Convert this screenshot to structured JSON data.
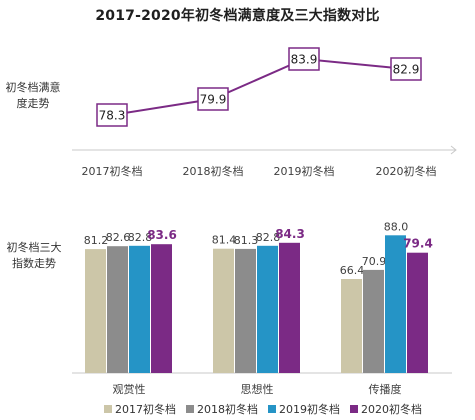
{
  "title": "2017-2020年初冬档满意度及三大指数对比",
  "colors": {
    "series": [
      "#ccc6a8",
      "#8c8c8c",
      "#2594c6",
      "#7b2a85"
    ],
    "line": "#7b2a85",
    "axis": "#c9c9c9",
    "text": "#404040"
  },
  "chart_data": [
    {
      "type": "line",
      "side_label": "初冬档满意度走势",
      "categories": [
        "2017初冬档",
        "2018初冬档",
        "2019初冬档",
        "2020初冬档"
      ],
      "values": [
        78.3,
        79.9,
        83.9,
        82.9
      ],
      "value_labels": [
        "78.3",
        "79.9",
        "83.9",
        "82.9"
      ],
      "grid": false
    },
    {
      "type": "bar",
      "side_label": "初冬档三大指数走势",
      "categories": [
        "观赏性",
        "思想性",
        "传播度"
      ],
      "series": [
        {
          "name": "2017初冬档",
          "values": [
            81.2,
            81.4,
            66.4
          ],
          "labels": [
            "81.2",
            "81.4",
            "66.4"
          ]
        },
        {
          "name": "2018初冬档",
          "values": [
            82.6,
            81.3,
            70.9
          ],
          "labels": [
            "82.6",
            "81.3",
            "70.9"
          ]
        },
        {
          "name": "2019初冬档",
          "values": [
            82.8,
            82.8,
            88.0
          ],
          "labels": [
            "82.8",
            "82.8",
            "88.0"
          ]
        },
        {
          "name": "2020初冬档",
          "values": [
            83.6,
            84.3,
            79.4
          ],
          "labels": [
            "83.6",
            "84.3",
            "79.4"
          ]
        }
      ],
      "legend_position": "bottom",
      "grid": false
    }
  ]
}
